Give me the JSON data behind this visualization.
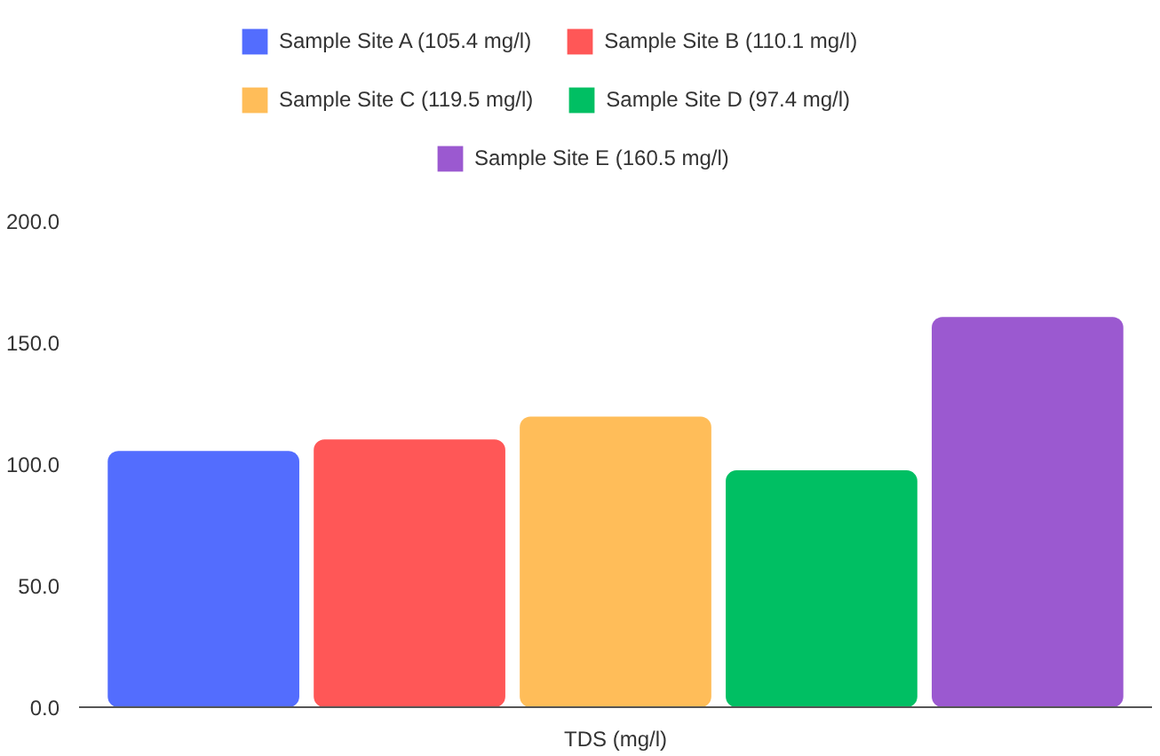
{
  "chart_data": {
    "type": "bar",
    "categories": [
      "TDS (mg/l)"
    ],
    "series": [
      {
        "name": "Sample Site A (105.4 mg/l)",
        "color": "#536dfe",
        "values": [
          105.4
        ]
      },
      {
        "name": "Sample Site B (110.1 mg/l)",
        "color": "#ff5757",
        "values": [
          110.1
        ]
      },
      {
        "name": "Sample Site C (119.5 mg/l)",
        "color": "#ffbd59",
        "values": [
          119.5
        ]
      },
      {
        "name": "Sample Site D (97.4 mg/l)",
        "color": "#00bf63",
        "values": [
          97.4
        ]
      },
      {
        "name": "Sample Site E (160.5 mg/l)",
        "color": "#9b59d0",
        "values": [
          160.5
        ]
      }
    ],
    "ylim": [
      0,
      200
    ],
    "yticks": [
      {
        "value": 0,
        "label": "0.0"
      },
      {
        "value": 50,
        "label": "50.0"
      },
      {
        "value": 100,
        "label": "100.0"
      },
      {
        "value": 150,
        "label": "150.0"
      },
      {
        "value": 200,
        "label": "200.0"
      }
    ],
    "grid": false,
    "legend": "top"
  }
}
